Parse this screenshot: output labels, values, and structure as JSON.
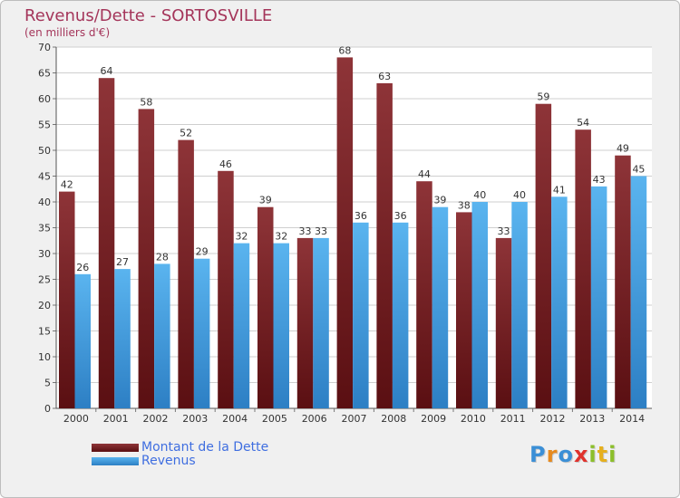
{
  "chart_data": {
    "type": "bar",
    "title": "Revenus/Dette - SORTOSVILLE",
    "subtitle": "(en milliers d'€)",
    "categories": [
      "2000",
      "2001",
      "2002",
      "2003",
      "2004",
      "2005",
      "2006",
      "2007",
      "2008",
      "2009",
      "2010",
      "2011",
      "2012",
      "2013",
      "2014"
    ],
    "series": [
      {
        "name": "Montant de la Dette",
        "color": "#7a1f24",
        "values": [
          42,
          64,
          58,
          52,
          46,
          39,
          33,
          68,
          63,
          44,
          38,
          33,
          59,
          54,
          49
        ]
      },
      {
        "name": "Revenus",
        "color": "#4ba3e3",
        "values": [
          26,
          27,
          28,
          29,
          32,
          32,
          33,
          36,
          36,
          39,
          40,
          40,
          41,
          43,
          45
        ]
      }
    ],
    "ylim": [
      0,
      70
    ],
    "yticks": [
      0,
      5,
      10,
      15,
      20,
      25,
      30,
      35,
      40,
      45,
      50,
      55,
      60,
      65,
      70
    ],
    "grid": true,
    "legend_position": "bottom-left"
  },
  "logo": {
    "letters": [
      {
        "ch": "P",
        "color": "#3b8fd6"
      },
      {
        "ch": "r",
        "color": "#e68a1e"
      },
      {
        "ch": "o",
        "color": "#3b8fd6"
      },
      {
        "ch": "x",
        "color": "#e0322c"
      },
      {
        "ch": "i",
        "color": "#8cbf2a"
      },
      {
        "ch": "t",
        "color": "#e6b01e"
      },
      {
        "ch": "i",
        "color": "#8cbf2a"
      }
    ]
  }
}
